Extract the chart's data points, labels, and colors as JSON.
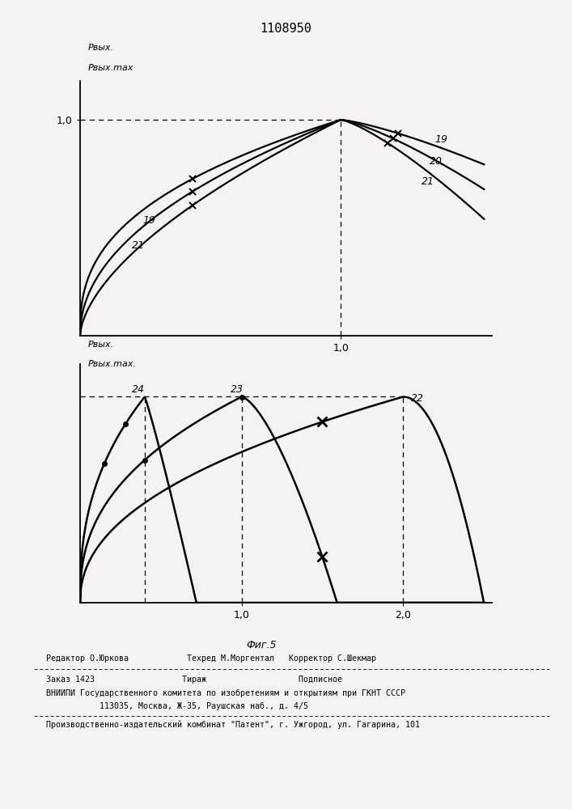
{
  "title": "1108950",
  "background": "#f5f3ef",
  "footer_line1": "Редактор О.Юркова            Техред М.Моргентал   Корректор С.Шекмар",
  "footer_line2": "Заказ 1423                  Тираж                   Подписное",
  "footer_line3": "ВНИИПИ Государственного комитета по изобретениям и открытиям при ГКНТ СССР",
  "footer_line4": "           113035, Москва, Ж-35, Раушская наб., д. 4/5",
  "footer_line5": "Производственно-издательский комбинат \"Патент\", г. Ужгород, ул. Гагарина, 101"
}
